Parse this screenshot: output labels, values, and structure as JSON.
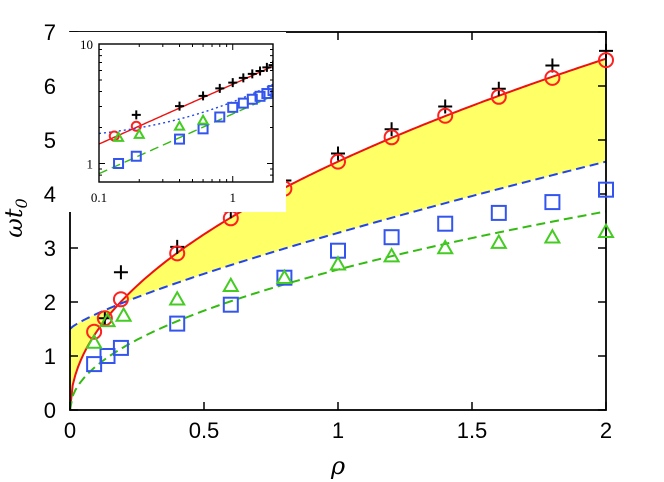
{
  "chart_data": [
    {
      "type": "scatter",
      "title": "",
      "xlabel": "ρ",
      "ylabel": "ωt",
      "ylabel_sub": "0",
      "xlim": [
        0,
        2
      ],
      "ylim": [
        0,
        7
      ],
      "x_ticks": [
        "0",
        "0.5",
        "1",
        "1.5",
        "2"
      ],
      "y_ticks": [
        "0",
        "1",
        "2",
        "3",
        "4",
        "5",
        "6",
        "7"
      ],
      "grid": false,
      "legend": "none",
      "series": [
        {
          "marker": "plus",
          "color": "#000000",
          "x": [
            0.13,
            0.19,
            0.4,
            0.6,
            0.8,
            1.0,
            1.2,
            1.4,
            1.6,
            1.8,
            2.0
          ],
          "y": [
            1.7,
            2.55,
            3.02,
            3.68,
            4.25,
            4.75,
            5.2,
            5.62,
            5.95,
            6.38,
            6.65
          ]
        },
        {
          "marker": "circle",
          "color": "#ff2020",
          "x": [
            0.09,
            0.13,
            0.19,
            0.4,
            0.6,
            0.8,
            1.0,
            1.2,
            1.4,
            1.6,
            1.8,
            2.0
          ],
          "y": [
            1.45,
            1.7,
            2.05,
            2.9,
            3.55,
            4.1,
            4.6,
            5.05,
            5.45,
            5.8,
            6.15,
            6.48
          ]
        },
        {
          "marker": "square",
          "color": "#3355ee",
          "x": [
            0.09,
            0.14,
            0.19,
            0.4,
            0.6,
            0.8,
            1.0,
            1.2,
            1.4,
            1.6,
            1.8,
            2.0
          ],
          "y": [
            0.85,
            1.0,
            1.15,
            1.6,
            1.95,
            2.45,
            2.95,
            3.2,
            3.45,
            3.65,
            3.85,
            4.08
          ]
        },
        {
          "marker": "triangle",
          "color": "#44cc22",
          "x": [
            0.09,
            0.14,
            0.2,
            0.4,
            0.6,
            0.8,
            1.0,
            1.2,
            1.4,
            1.6,
            1.8,
            2.0
          ],
          "y": [
            1.25,
            1.65,
            1.75,
            2.05,
            2.3,
            2.45,
            2.7,
            2.85,
            3.0,
            3.1,
            3.2,
            3.3
          ]
        }
      ],
      "fits": [
        {
          "style": "solid",
          "color": "#ee1111",
          "function": "4.6*rho^0.5",
          "rho_range": [
            0,
            2
          ]
        },
        {
          "style": "dashed",
          "color": "#2244ee",
          "function": "1.5+1.78*rho^0.8",
          "rho_range": [
            0,
            2
          ]
        },
        {
          "style": "dashed",
          "color": "#33bb11",
          "function": "2.6*rho^0.5",
          "rho_range": [
            0,
            2
          ]
        }
      ],
      "shaded_region": {
        "color": "#ffff66",
        "between": [
          "1.5+1.78*rho^0.8",
          "4.6*rho^0.5"
        ]
      }
    },
    {
      "type": "scatter",
      "scale": "log-log",
      "xlim": [
        0.1,
        2
      ],
      "ylim": [
        0.7,
        10
      ],
      "x_ticks": [
        "0.1",
        "1"
      ],
      "y_ticks": [
        "1",
        "10"
      ],
      "series": [
        {
          "marker": "plus",
          "color": "#000000",
          "x": [
            0.19,
            0.4,
            0.6,
            0.8,
            1.0,
            1.2,
            1.4,
            1.6,
            1.8,
            2.0
          ],
          "y": [
            2.55,
            3.02,
            3.68,
            4.25,
            4.75,
            5.2,
            5.62,
            5.95,
            6.38,
            6.65
          ]
        },
        {
          "marker": "circle",
          "color": "#ff2020",
          "x": [
            0.13,
            0.19
          ],
          "y": [
            1.7,
            2.05
          ]
        },
        {
          "marker": "square",
          "color": "#3355ee",
          "x": [
            0.09,
            0.14,
            0.19,
            0.4,
            0.6,
            0.8,
            1.0,
            1.2,
            1.4,
            1.6,
            1.8,
            2.0
          ],
          "y": [
            0.85,
            1.0,
            1.15,
            1.6,
            1.95,
            2.45,
            2.95,
            3.2,
            3.45,
            3.65,
            3.85,
            4.08
          ]
        },
        {
          "marker": "triangle",
          "color": "#44cc22",
          "x": [
            0.09,
            0.14,
            0.2,
            0.4,
            0.6
          ],
          "y": [
            1.25,
            1.65,
            1.75,
            2.05,
            2.3
          ]
        }
      ],
      "fits": [
        {
          "style": "solid",
          "color": "#ee1111",
          "function": "4.6*rho^0.5"
        },
        {
          "style": "dotted",
          "color": "#2244ee",
          "function": "1.5+1.78*rho^0.8"
        },
        {
          "style": "dashed",
          "color": "#33bb11",
          "function": "2.6*rho^0.5"
        }
      ]
    }
  ]
}
